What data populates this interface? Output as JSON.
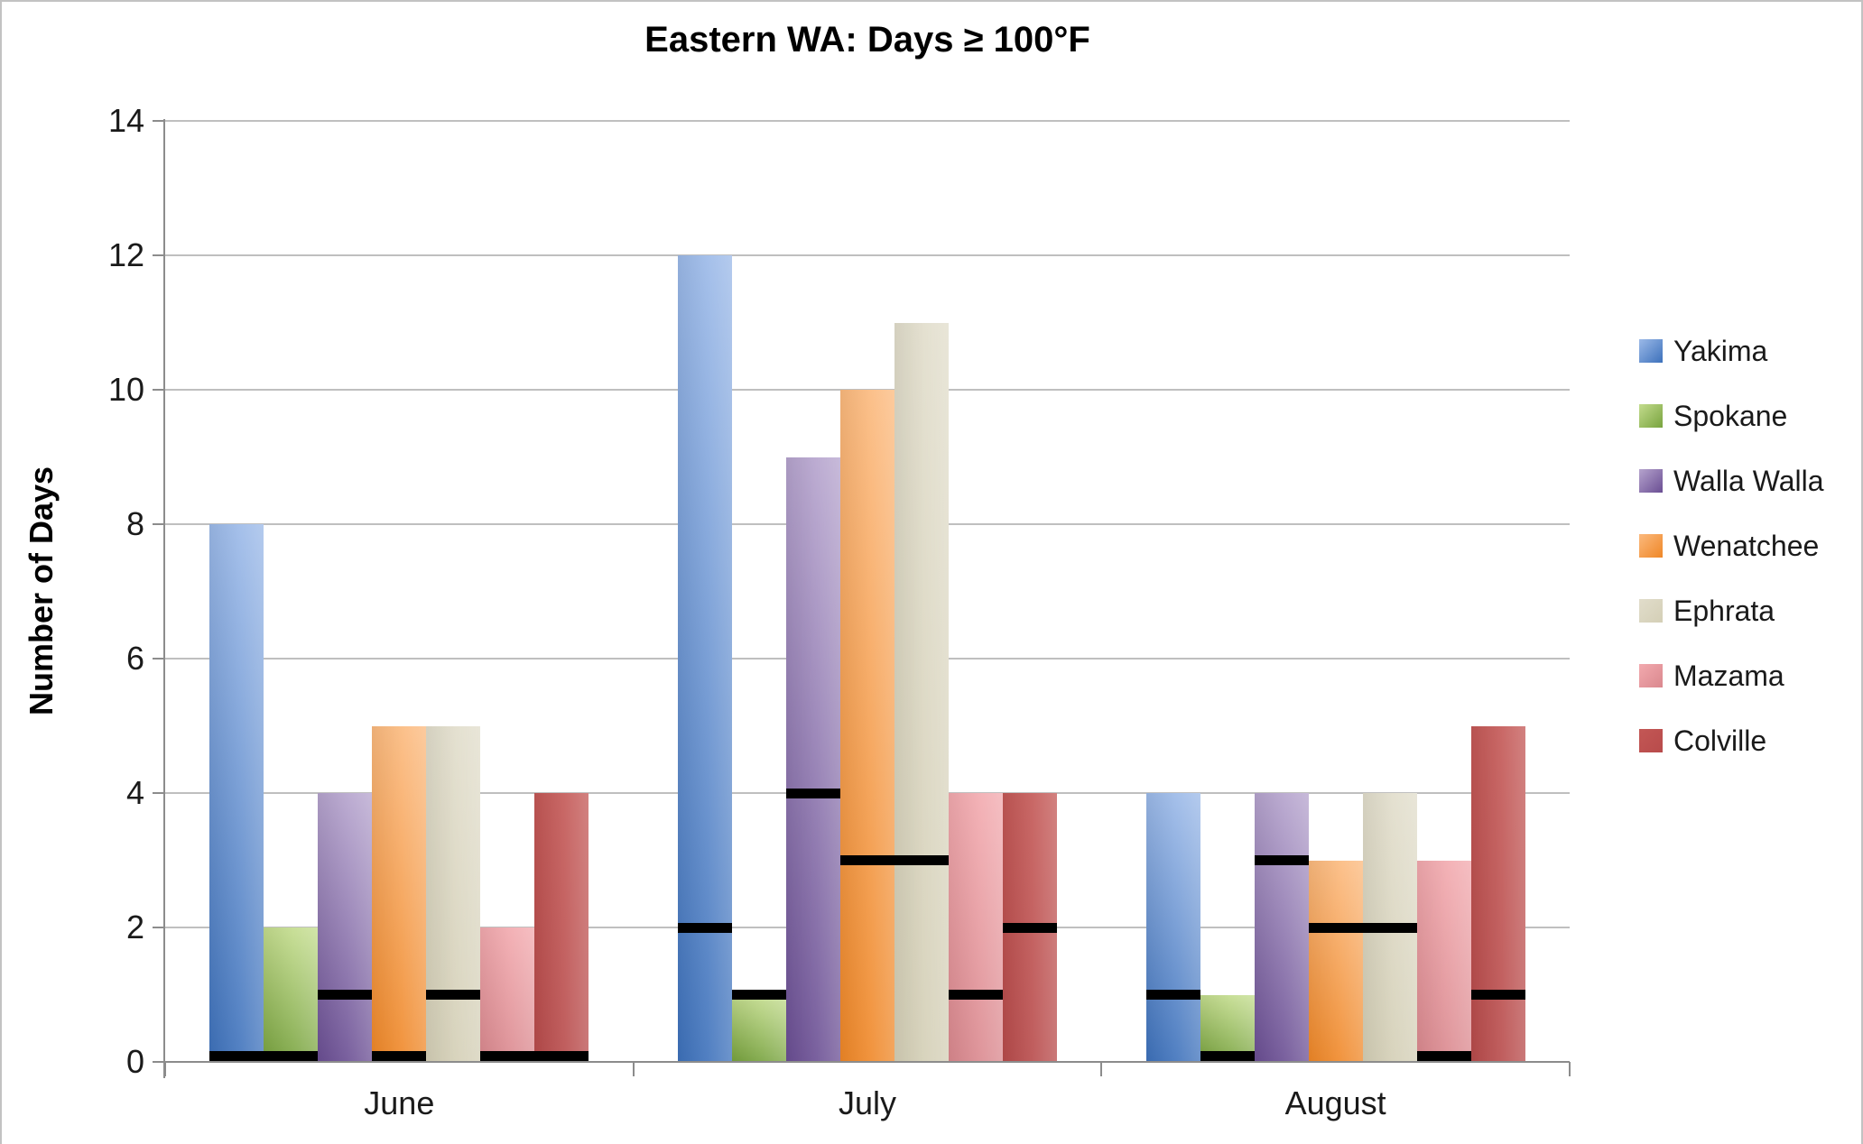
{
  "chart": {
    "title": "Eastern WA: Days ≥ 100°F",
    "y_axis_title": "Number of Days"
  },
  "chart_data": {
    "type": "bar",
    "title": "Eastern WA: Days ≥ 100°F",
    "xlabel": "",
    "ylabel": "Number of Days",
    "categories": [
      "June",
      "July",
      "August"
    ],
    "series": [
      {
        "name": "Yakima",
        "values": [
          8,
          12,
          4
        ],
        "black_dash_overlay_values": [
          0,
          2,
          1
        ],
        "color_top": "#9bb9e8",
        "color_bottom": "#3d71bb"
      },
      {
        "name": "Spokane",
        "values": [
          2,
          1,
          1
        ],
        "black_dash_overlay_values": [
          0,
          1,
          0
        ],
        "color_top": "#c3dc8d",
        "color_bottom": "#78a33e"
      },
      {
        "name": "Walla Walla",
        "values": [
          4,
          9,
          4
        ],
        "black_dash_overlay_values": [
          1,
          4,
          3
        ],
        "color_top": "#b5a3cd",
        "color_bottom": "#6a4e93"
      },
      {
        "name": "Wenatchee",
        "values": [
          5,
          10,
          3
        ],
        "black_dash_overlay_values": [
          0,
          3,
          2
        ],
        "color_top": "#fbb97d",
        "color_bottom": "#ef8727"
      },
      {
        "name": "Ephrata",
        "values": [
          5,
          11,
          4
        ],
        "black_dash_overlay_values": [
          1,
          3,
          2
        ],
        "color_top": "#e1ddcb",
        "color_bottom": "#d4cfb6"
      },
      {
        "name": "Mazama",
        "values": [
          2,
          4,
          3
        ],
        "black_dash_overlay_values": [
          0,
          1,
          0
        ],
        "color_top": "#f2a9ae",
        "color_bottom": "#da888e"
      },
      {
        "name": "Colville",
        "values": [
          4,
          4,
          5
        ],
        "black_dash_overlay_values": [
          0,
          2,
          1
        ],
        "color_top": "#c35755",
        "color_bottom": "#b84b4b"
      }
    ],
    "overlay_marker_color": "#000000",
    "y_ticks": [
      0,
      2,
      4,
      6,
      8,
      10,
      12,
      14
    ],
    "ylim": [
      0,
      14
    ],
    "grid": true,
    "gridline_color": "#bfbfbf",
    "axis_color": "#8c8c8c",
    "legend_position": "right"
  }
}
